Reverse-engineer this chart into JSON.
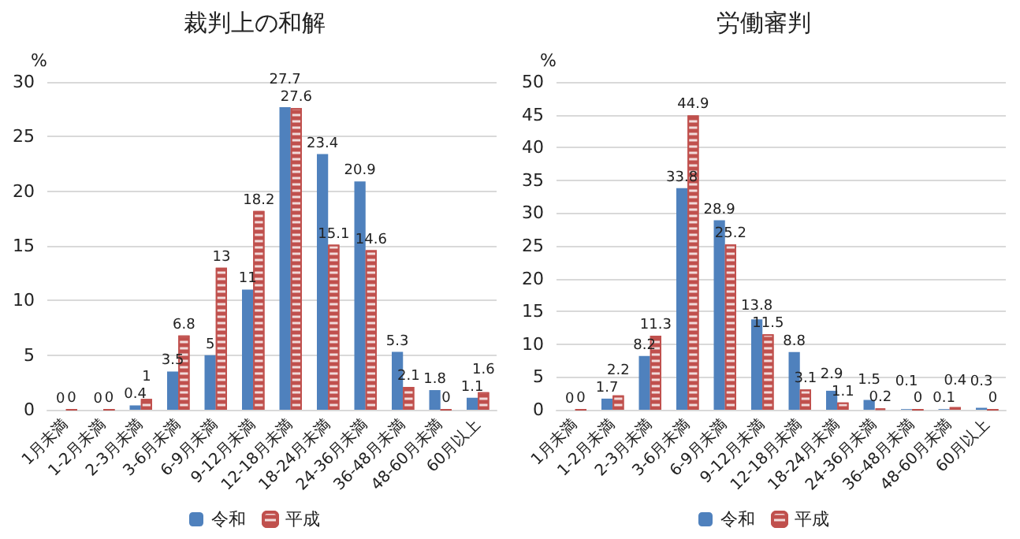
{
  "chart_data": [
    {
      "type": "bar",
      "title": "裁判上の和解",
      "ylabel": "%",
      "categories": [
        "1月未満",
        "1-2月未満",
        "2-3月未満",
        "3-6月未満",
        "6-9月未満",
        "9-12月未満",
        "12-18月未満",
        "18-24月未満",
        "24-36月未満",
        "36-48月未満",
        "48-60月未満",
        "60月以上"
      ],
      "series": [
        {
          "name": "令和",
          "color": "#4f81bd",
          "values": [
            0,
            0,
            0.4,
            3.5,
            5,
            11,
            27.7,
            23.4,
            20.9,
            5.3,
            1.8,
            1.1
          ]
        },
        {
          "name": "平成",
          "color": "#c0504d",
          "values": [
            0,
            0,
            1,
            6.8,
            13,
            18.2,
            27.6,
            15.1,
            14.6,
            2.1,
            0,
            1.6
          ]
        }
      ],
      "ylim": [
        0,
        30
      ],
      "yticks": [
        0,
        5,
        10,
        15,
        20,
        25,
        30
      ],
      "grid": "y",
      "legend": "bottom",
      "data_labels": true
    },
    {
      "type": "bar",
      "title": "労働審判",
      "ylabel": "%",
      "categories": [
        "1月未満",
        "1-2月未満",
        "2-3月未満",
        "3-6月未満",
        "6-9月未満",
        "9-12月未満",
        "12-18月未満",
        "18-24月未満",
        "24-36月未満",
        "36-48月未満",
        "48-60月未満",
        "60月以上"
      ],
      "series": [
        {
          "name": "令和",
          "color": "#4f81bd",
          "values": [
            0,
            1.7,
            8.2,
            33.8,
            28.9,
            13.8,
            8.8,
            2.9,
            1.5,
            0.1,
            0.1,
            0.3
          ]
        },
        {
          "name": "平成",
          "color": "#c0504d",
          "values": [
            0,
            2.2,
            11.3,
            44.9,
            25.2,
            11.5,
            3.1,
            1.1,
            0.2,
            0,
            0.4,
            0
          ]
        }
      ],
      "ylim": [
        0,
        50
      ],
      "yticks": [
        0,
        5,
        10,
        15,
        20,
        25,
        30,
        35,
        40,
        45,
        50
      ],
      "grid": "y",
      "legend": "bottom",
      "data_labels": true
    }
  ]
}
